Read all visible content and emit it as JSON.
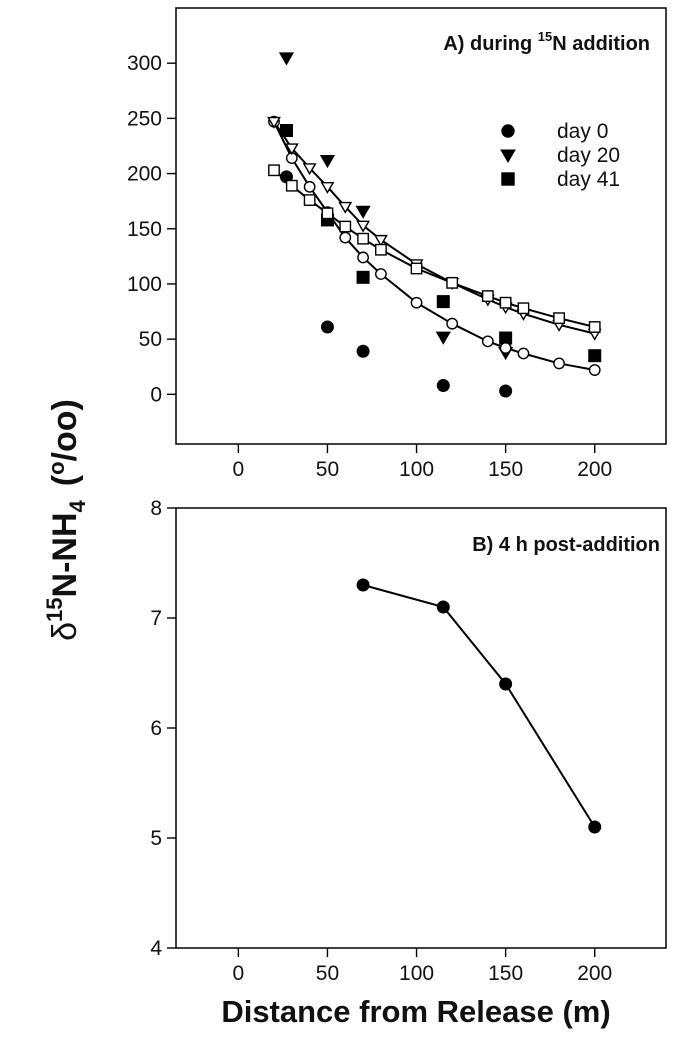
{
  "chart_data": [
    {
      "type": "scatter",
      "title": "A) during ",
      "title_sup": "15",
      "title_rest": "N addition",
      "xlim": [
        -35,
        240
      ],
      "ylim": [
        -45,
        350
      ],
      "x_ticks": [
        0,
        50,
        100,
        150,
        200
      ],
      "y_ticks": [
        0,
        50,
        100,
        150,
        200,
        250,
        300
      ],
      "legend_position": "top-right",
      "series": [
        {
          "name": "day 0",
          "marker": "filled-circle",
          "line": false,
          "x": [
            27,
            50,
            70,
            115,
            150
          ],
          "y": [
            197,
            61,
            39,
            8,
            3
          ]
        },
        {
          "name": "day 20",
          "marker": "filled-triangle-down",
          "line": false,
          "x": [
            27,
            50,
            70,
            115,
            150
          ],
          "y": [
            305,
            212,
            166,
            52,
            38
          ]
        },
        {
          "name": "day 41",
          "marker": "filled-square",
          "line": false,
          "x": [
            27,
            50,
            70,
            115,
            150,
            200
          ],
          "y": [
            239,
            158,
            106,
            84,
            51,
            35
          ]
        },
        {
          "marker": "open-circle",
          "line": true,
          "x": [
            20,
            30,
            40,
            50,
            60,
            70,
            80,
            100,
            120,
            140,
            150,
            160,
            180,
            200
          ],
          "y": [
            247,
            214,
            188,
            165,
            142,
            124,
            109,
            83,
            64,
            48,
            42,
            37,
            28,
            22
          ]
        },
        {
          "marker": "open-triangle-down",
          "line": true,
          "x": [
            20,
            30,
            40,
            50,
            60,
            70,
            80,
            100,
            120,
            140,
            150,
            160,
            180,
            200
          ],
          "y": [
            247,
            223,
            205,
            188,
            170,
            153,
            140,
            118,
            101,
            86,
            79,
            73,
            63,
            55
          ]
        },
        {
          "marker": "open-square",
          "line": true,
          "x": [
            20,
            30,
            40,
            50,
            60,
            70,
            80,
            100,
            120,
            140,
            150,
            160,
            180,
            200
          ],
          "y": [
            203,
            189,
            176,
            164,
            152,
            141,
            131,
            114,
            101,
            89,
            83,
            78,
            69,
            61
          ]
        }
      ]
    },
    {
      "type": "line",
      "title": "B) 4 h post-addition",
      "xlim": [
        -35,
        240
      ],
      "ylim": [
        4,
        8
      ],
      "x_ticks": [
        0,
        50,
        100,
        150,
        200
      ],
      "y_ticks": [
        4,
        5,
        6,
        7,
        8
      ],
      "series": [
        {
          "marker": "filled-circle",
          "line": true,
          "x": [
            70,
            115,
            150,
            200
          ],
          "y": [
            7.3,
            7.1,
            6.4,
            5.1
          ]
        }
      ]
    }
  ],
  "axes": {
    "ylabel_main": "δ",
    "ylabel_sup": "15",
    "ylabel_mid": "N-NH",
    "ylabel_sub": "4",
    "ylabel_unit_open": "(",
    "ylabel_unit_sup": "o",
    "ylabel_unit_rest": "/oo)",
    "xlabel": "Distance from Release (m)"
  }
}
